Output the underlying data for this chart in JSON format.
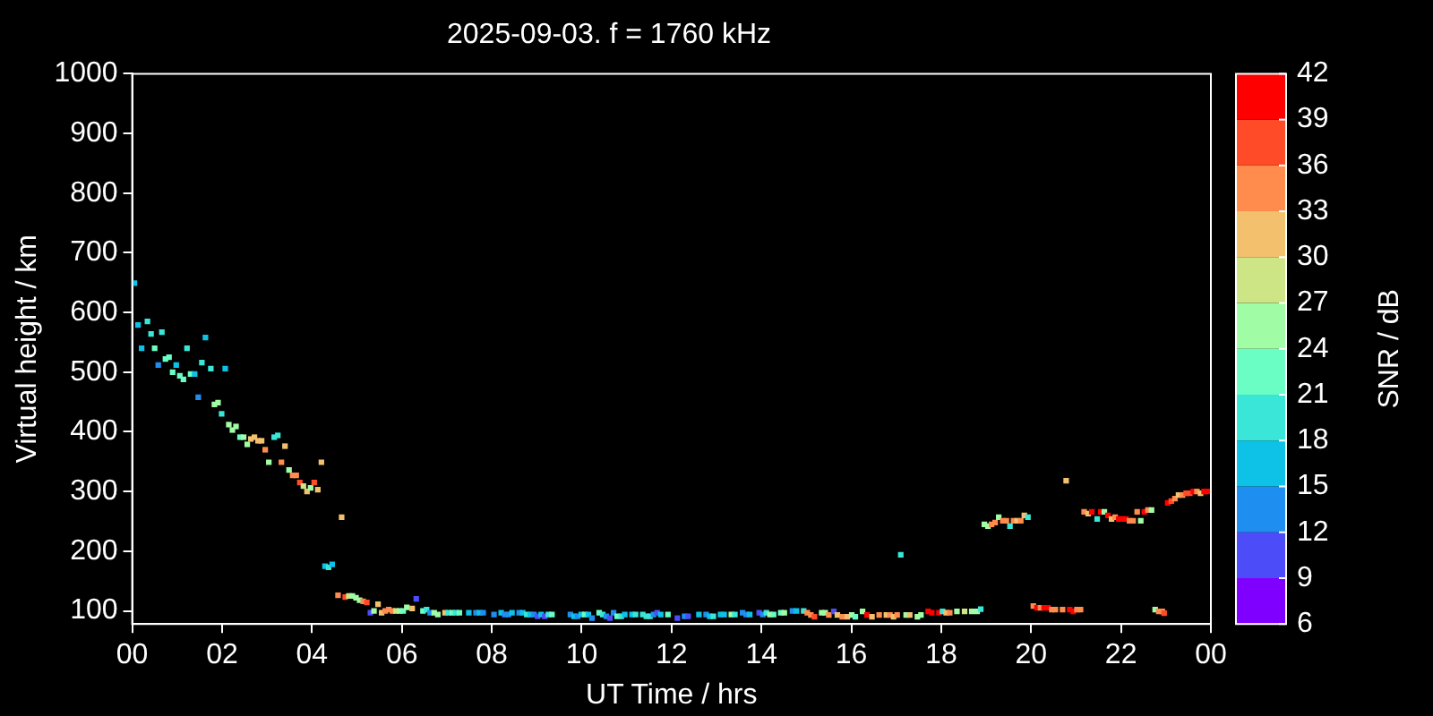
{
  "chart_data": {
    "type": "scatter",
    "title": "2025-09-03. f = 1760 kHz",
    "xlabel": "UT Time / hrs",
    "ylabel": "Virtual height / km",
    "clabel": "SNR / dB",
    "xlim": [
      0,
      24
    ],
    "xticks": [
      {
        "value": 0,
        "label": "00"
      },
      {
        "value": 2,
        "label": "02"
      },
      {
        "value": 4,
        "label": "04"
      },
      {
        "value": 6,
        "label": "06"
      },
      {
        "value": 8,
        "label": "08"
      },
      {
        "value": 10,
        "label": "10"
      },
      {
        "value": 12,
        "label": "12"
      },
      {
        "value": 14,
        "label": "14"
      },
      {
        "value": 16,
        "label": "16"
      },
      {
        "value": 18,
        "label": "18"
      },
      {
        "value": 20,
        "label": "20"
      },
      {
        "value": 22,
        "label": "22"
      },
      {
        "value": 24,
        "label": "00"
      }
    ],
    "ylim": [
      78,
      1000
    ],
    "yticks": [
      100,
      200,
      300,
      400,
      500,
      600,
      700,
      800,
      900,
      1000
    ],
    "clim": [
      6,
      42
    ],
    "cticks": [
      6,
      9,
      12,
      15,
      18,
      21,
      24,
      27,
      30,
      33,
      36,
      39,
      42
    ],
    "grid": false,
    "legend": false,
    "marker": "square",
    "x": [
      0.05,
      0.13,
      0.21,
      0.34,
      0.42,
      0.5,
      0.58,
      0.66,
      0.74,
      0.82,
      0.9,
      0.98,
      1.06,
      1.14,
      1.22,
      1.3,
      1.39,
      1.47,
      1.55,
      1.63,
      1.75,
      1.83,
      1.91,
      1.99,
      2.07,
      2.15,
      2.23,
      2.31,
      2.4,
      2.48,
      2.56,
      2.64,
      2.72,
      2.8,
      2.88,
      2.96,
      3.04,
      3.16,
      3.24,
      3.32,
      3.4,
      3.49,
      3.57,
      3.65,
      3.73,
      3.81,
      3.89,
      3.97,
      4.05,
      4.13,
      4.21,
      4.29,
      4.37,
      4.45,
      4.58,
      4.66,
      4.74,
      4.82,
      4.9,
      4.98,
      5.06,
      5.14,
      5.22,
      5.3,
      5.38,
      5.47,
      5.55,
      5.63,
      5.71,
      5.79,
      5.87,
      5.95,
      6.03,
      6.11,
      6.23,
      6.32,
      6.47,
      6.55,
      6.63,
      6.72,
      6.8,
      6.96,
      7.04,
      7.12,
      7.2,
      7.28,
      7.49,
      7.65,
      7.73,
      7.81,
      8.05,
      8.21,
      8.29,
      8.37,
      8.45,
      8.61,
      8.69,
      8.78,
      8.86,
      8.94,
      9.02,
      9.1,
      9.18,
      9.26,
      9.34,
      9.75,
      9.83,
      9.91,
      9.99,
      10.07,
      10.15,
      10.23,
      10.39,
      10.47,
      10.55,
      10.63,
      10.71,
      10.79,
      10.88,
      10.96,
      11.12,
      11.2,
      11.36,
      11.44,
      11.52,
      11.6,
      11.68,
      11.76,
      11.92,
      12.13,
      12.29,
      12.37,
      12.61,
      12.77,
      12.85,
      12.93,
      13.09,
      13.17,
      13.33,
      13.41,
      13.58,
      13.66,
      13.74,
      13.95,
      14.03,
      14.11,
      14.19,
      14.27,
      14.43,
      14.51,
      14.69,
      14.78,
      14.94,
      15.02,
      15.1,
      15.18,
      15.34,
      15.42,
      15.5,
      15.61,
      15.69,
      15.8,
      15.91,
      16.01,
      16.09,
      16.25,
      16.35,
      16.46,
      16.62,
      16.78,
      16.86,
      16.94,
      17.02,
      17.1,
      17.22,
      17.3,
      17.47,
      17.55,
      17.71,
      17.79,
      17.95,
      18.03,
      18.11,
      18.19,
      18.35,
      18.52,
      18.68,
      18.8,
      18.88,
      18.96,
      19.04,
      19.12,
      19.2,
      19.28,
      19.37,
      19.45,
      19.53,
      19.61,
      19.69,
      19.77,
      19.85,
      19.93,
      20.05,
      20.13,
      20.21,
      20.29,
      20.38,
      20.46,
      20.54,
      20.7,
      20.78,
      20.86,
      20.94,
      21.02,
      21.1,
      21.18,
      21.27,
      21.35,
      21.47,
      21.55,
      21.63,
      21.71,
      21.79,
      21.87,
      21.95,
      22.03,
      22.11,
      22.19,
      22.27,
      22.36,
      22.44,
      22.52,
      22.6,
      22.68,
      22.76,
      22.84,
      22.92,
      22.96,
      23.04,
      23.12,
      23.2,
      23.28,
      23.37,
      23.45,
      23.53,
      23.61,
      23.69,
      23.77,
      23.85,
      23.93
    ],
    "values": [
      649,
      579,
      540,
      585,
      564,
      540,
      512,
      567,
      522,
      525,
      500,
      512,
      494,
      488,
      540,
      497,
      497,
      458,
      516,
      558,
      506,
      446,
      449,
      430,
      506,
      412,
      403,
      409,
      391,
      391,
      379,
      388,
      391,
      385,
      385,
      370,
      349,
      391,
      394,
      349,
      376,
      336,
      327,
      327,
      315,
      309,
      300,
      306,
      315,
      303,
      349,
      175,
      173,
      178,
      126,
      257,
      123,
      125,
      125,
      122,
      118,
      116,
      114,
      97,
      100,
      111,
      97,
      100,
      102,
      100,
      100,
      100,
      100,
      106,
      104,
      120,
      100,
      102,
      97,
      97,
      94,
      97,
      97,
      97,
      97,
      97,
      97,
      97,
      97,
      97,
      94,
      97,
      94,
      94,
      97,
      97,
      97,
      94,
      94,
      94,
      91,
      94,
      91,
      94,
      94,
      94,
      91,
      91,
      94,
      94,
      94,
      88,
      97,
      94,
      91,
      88,
      97,
      91,
      91,
      94,
      94,
      94,
      94,
      91,
      91,
      94,
      97,
      94,
      94,
      88,
      91,
      91,
      94,
      94,
      91,
      91,
      94,
      94,
      94,
      94,
      97,
      94,
      94,
      97,
      94,
      97,
      94,
      94,
      97,
      97,
      100,
      100,
      100,
      97,
      93,
      90,
      97,
      97,
      93,
      99,
      93,
      90,
      90,
      93,
      90,
      99,
      93,
      90,
      93,
      93,
      93,
      90,
      93,
      194,
      93,
      93,
      90,
      93,
      99,
      97,
      97,
      99,
      97,
      97,
      99,
      99,
      99,
      99,
      103,
      245,
      242,
      245,
      248,
      257,
      251,
      251,
      242,
      251,
      251,
      251,
      260,
      257,
      108,
      105,
      105,
      105,
      105,
      102,
      102,
      102,
      318,
      102,
      99,
      102,
      102,
      266,
      263,
      266,
      254,
      266,
      266,
      260,
      254,
      257,
      254,
      254,
      254,
      251,
      251,
      266,
      251,
      266,
      269,
      269,
      102,
      99,
      99,
      96,
      281,
      284,
      288,
      294,
      294,
      297,
      297,
      300,
      300,
      297,
      300,
      300
    ],
    "cvalues": [
      17,
      17,
      17,
      20,
      20,
      22,
      13,
      20,
      22,
      22,
      22,
      17,
      22,
      22,
      20,
      22,
      17,
      13,
      20,
      17,
      20,
      25,
      25,
      20,
      17,
      25,
      25,
      25,
      22,
      25,
      25,
      31,
      31,
      31,
      31,
      34,
      25,
      20,
      20,
      34,
      31,
      25,
      34,
      34,
      37,
      28,
      31,
      25,
      37,
      31,
      31,
      17,
      20,
      17,
      34,
      31,
      37,
      28,
      25,
      25,
      25,
      34,
      37,
      11,
      25,
      31,
      31,
      34,
      34,
      34,
      28,
      25,
      22,
      25,
      31,
      11,
      22,
      20,
      13,
      25,
      25,
      31,
      20,
      22,
      20,
      22,
      17,
      13,
      17,
      13,
      13,
      17,
      13,
      13,
      17,
      13,
      17,
      20,
      17,
      13,
      11,
      17,
      11,
      20,
      22,
      13,
      17,
      13,
      17,
      22,
      17,
      13,
      22,
      20,
      13,
      11,
      13,
      22,
      20,
      17,
      17,
      20,
      20,
      20,
      20,
      13,
      11,
      17,
      22,
      11,
      13,
      11,
      17,
      13,
      17,
      20,
      17,
      17,
      25,
      20,
      13,
      13,
      17,
      11,
      13,
      20,
      25,
      22,
      22,
      25,
      13,
      17,
      20,
      34,
      34,
      37,
      25,
      25,
      34,
      11,
      31,
      34,
      31,
      25,
      22,
      25,
      40,
      31,
      34,
      31,
      34,
      31,
      34,
      20,
      25,
      31,
      25,
      25,
      40,
      40,
      40,
      20,
      31,
      34,
      25,
      28,
      25,
      25,
      20,
      25,
      25,
      34,
      34,
      25,
      34,
      34,
      20,
      34,
      31,
      34,
      31,
      20,
      34,
      40,
      34,
      40,
      40,
      34,
      34,
      34,
      31,
      40,
      40,
      34,
      34,
      34,
      31,
      40,
      20,
      40,
      25,
      40,
      31,
      34,
      40,
      40,
      40,
      34,
      34,
      34,
      25,
      40,
      34,
      25,
      25,
      34,
      34,
      37,
      40,
      37,
      34,
      31,
      34,
      37,
      37,
      40,
      34,
      31,
      40,
      40
    ]
  }
}
